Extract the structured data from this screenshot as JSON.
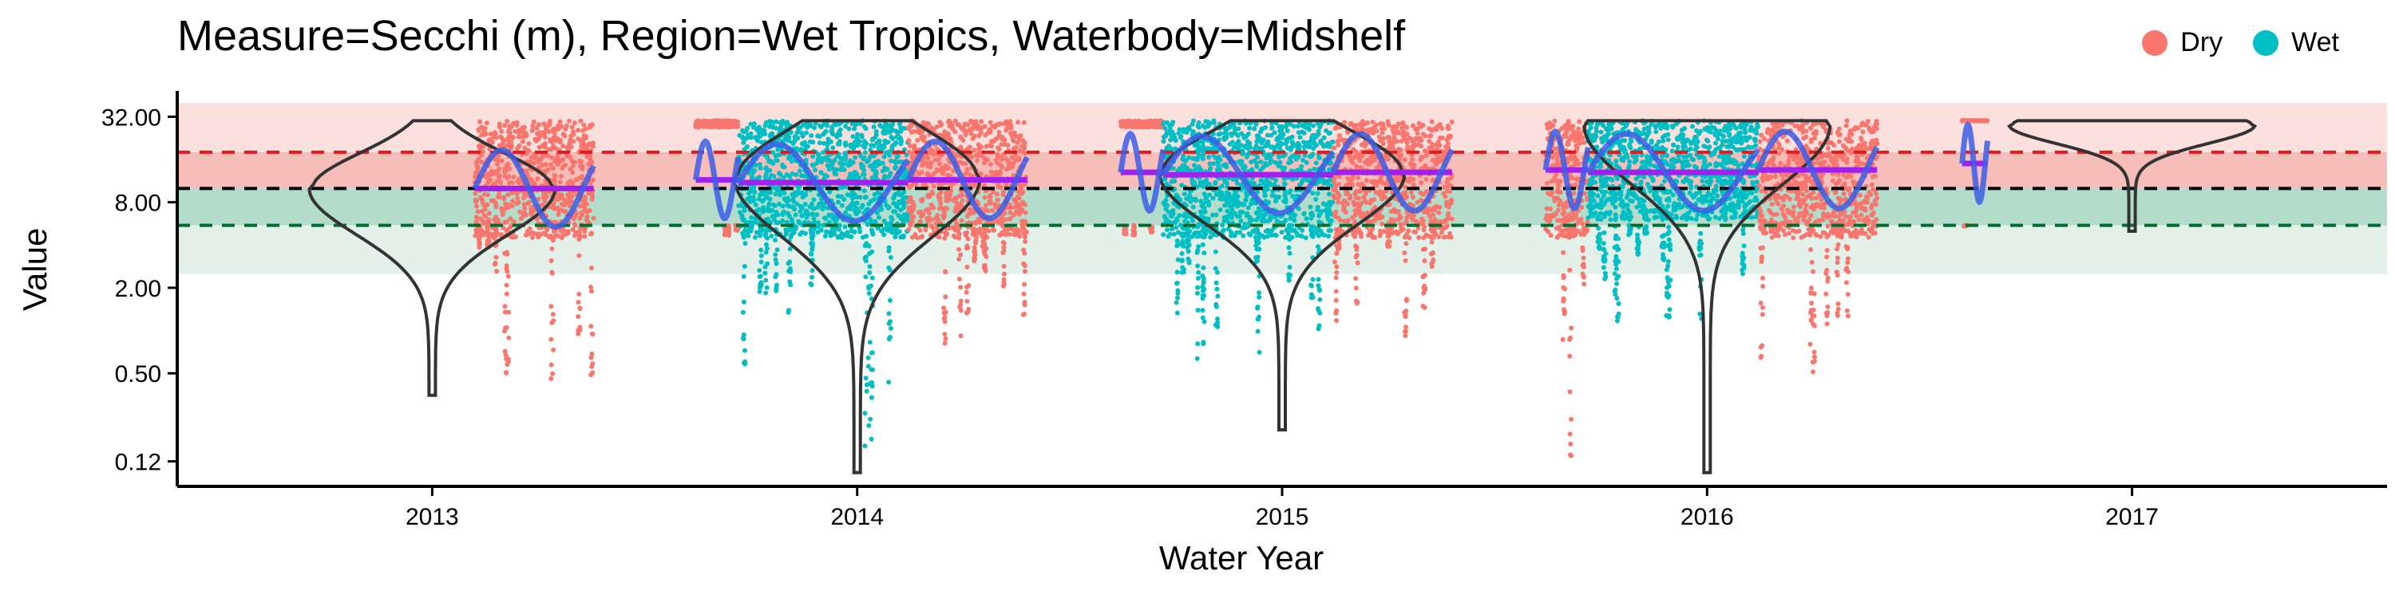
{
  "chart_data": {
    "type": "violin-scatter",
    "title": "Measure=Secchi (m), Region=Wet Tropics, Waterbody=Midshelf",
    "xlabel": "Water Year",
    "ylabel": "Value",
    "y_scale": "log2",
    "ylim": [
      0.08,
      45
    ],
    "y_ticks": [
      0.12,
      0.5,
      2.0,
      8.0,
      32.0
    ],
    "y_tick_labels": [
      "0.12",
      "0.50",
      "2.00",
      "8.00",
      "32.00"
    ],
    "x_ticks": [
      "2013",
      "2014",
      "2015",
      "2016",
      "2017"
    ],
    "legend": {
      "position": "top-right",
      "entries": [
        {
          "name": "Dry",
          "color": "#F8766D"
        },
        {
          "name": "Wet",
          "color": "#00BFC4"
        }
      ]
    },
    "reference_lines": [
      {
        "value": 18.0,
        "color": "#E41A1C",
        "style": "dashed"
      },
      {
        "value": 10.0,
        "color": "#000000",
        "style": "dashed"
      },
      {
        "value": 5.5,
        "color": "#006D2C",
        "style": "dashed"
      }
    ],
    "bands": [
      {
        "from": 18.0,
        "to": 40.0,
        "color": "#FCE0DE"
      },
      {
        "from": 10.0,
        "to": 18.0,
        "color": "#F6BDB9"
      },
      {
        "from": 5.5,
        "to": 10.0,
        "color": "#B4DCCB"
      },
      {
        "from": 2.5,
        "to": 5.5,
        "color": "#E4F1EA"
      }
    ],
    "years": [
      {
        "year": "2013",
        "seasons": [
          {
            "season": "Dry",
            "x_from": 2013.1,
            "x_to": 2013.38,
            "median": 10.0,
            "min": 0.3,
            "max": 30
          }
        ],
        "violin_min": 0.35,
        "violin_max": 30,
        "mode": 10.0
      },
      {
        "year": "2014",
        "seasons": [
          {
            "season": "Dry",
            "x_from": 2013.62,
            "x_to": 2013.72,
            "median": 11.5,
            "min": 4.5,
            "max": 30
          },
          {
            "season": "Wet",
            "x_from": 2013.72,
            "x_to": 2014.12,
            "median": 11.0,
            "min": 0.1,
            "max": 30
          },
          {
            "season": "Dry",
            "x_from": 2014.12,
            "x_to": 2014.4,
            "median": 11.5,
            "min": 0.5,
            "max": 30
          }
        ],
        "violin_min": 0.1,
        "violin_max": 30,
        "mode": 12.0
      },
      {
        "year": "2015",
        "seasons": [
          {
            "season": "Dry",
            "x_from": 2014.62,
            "x_to": 2014.72,
            "median": 13.0,
            "min": 4.5,
            "max": 30
          },
          {
            "season": "Wet",
            "x_from": 2014.72,
            "x_to": 2015.12,
            "median": 12.5,
            "min": 0.18,
            "max": 30
          },
          {
            "season": "Dry",
            "x_from": 2015.12,
            "x_to": 2015.4,
            "median": 13.0,
            "min": 0.5,
            "max": 30
          }
        ],
        "violin_min": 0.2,
        "violin_max": 30,
        "mode": 13.0
      },
      {
        "year": "2016",
        "seasons": [
          {
            "season": "Dry",
            "x_from": 2015.62,
            "x_to": 2015.72,
            "median": 13.5,
            "min": 0.1,
            "max": 30
          },
          {
            "season": "Wet",
            "x_from": 2015.72,
            "x_to": 2016.12,
            "median": 13.0,
            "min": 1.0,
            "max": 30
          },
          {
            "season": "Dry",
            "x_from": 2016.12,
            "x_to": 2016.4,
            "median": 13.5,
            "min": 0.3,
            "max": 30
          }
        ],
        "violin_min": 0.1,
        "violin_max": 30,
        "mode": 28.0
      },
      {
        "year": "2017",
        "seasons": [
          {
            "season": "Dry",
            "x_from": 2016.6,
            "x_to": 2016.66,
            "median": 15.0,
            "min": 5.0,
            "max": 30
          }
        ],
        "violin_min": 5.0,
        "violin_max": 30,
        "mode": 28.0
      }
    ],
    "grid": false
  }
}
